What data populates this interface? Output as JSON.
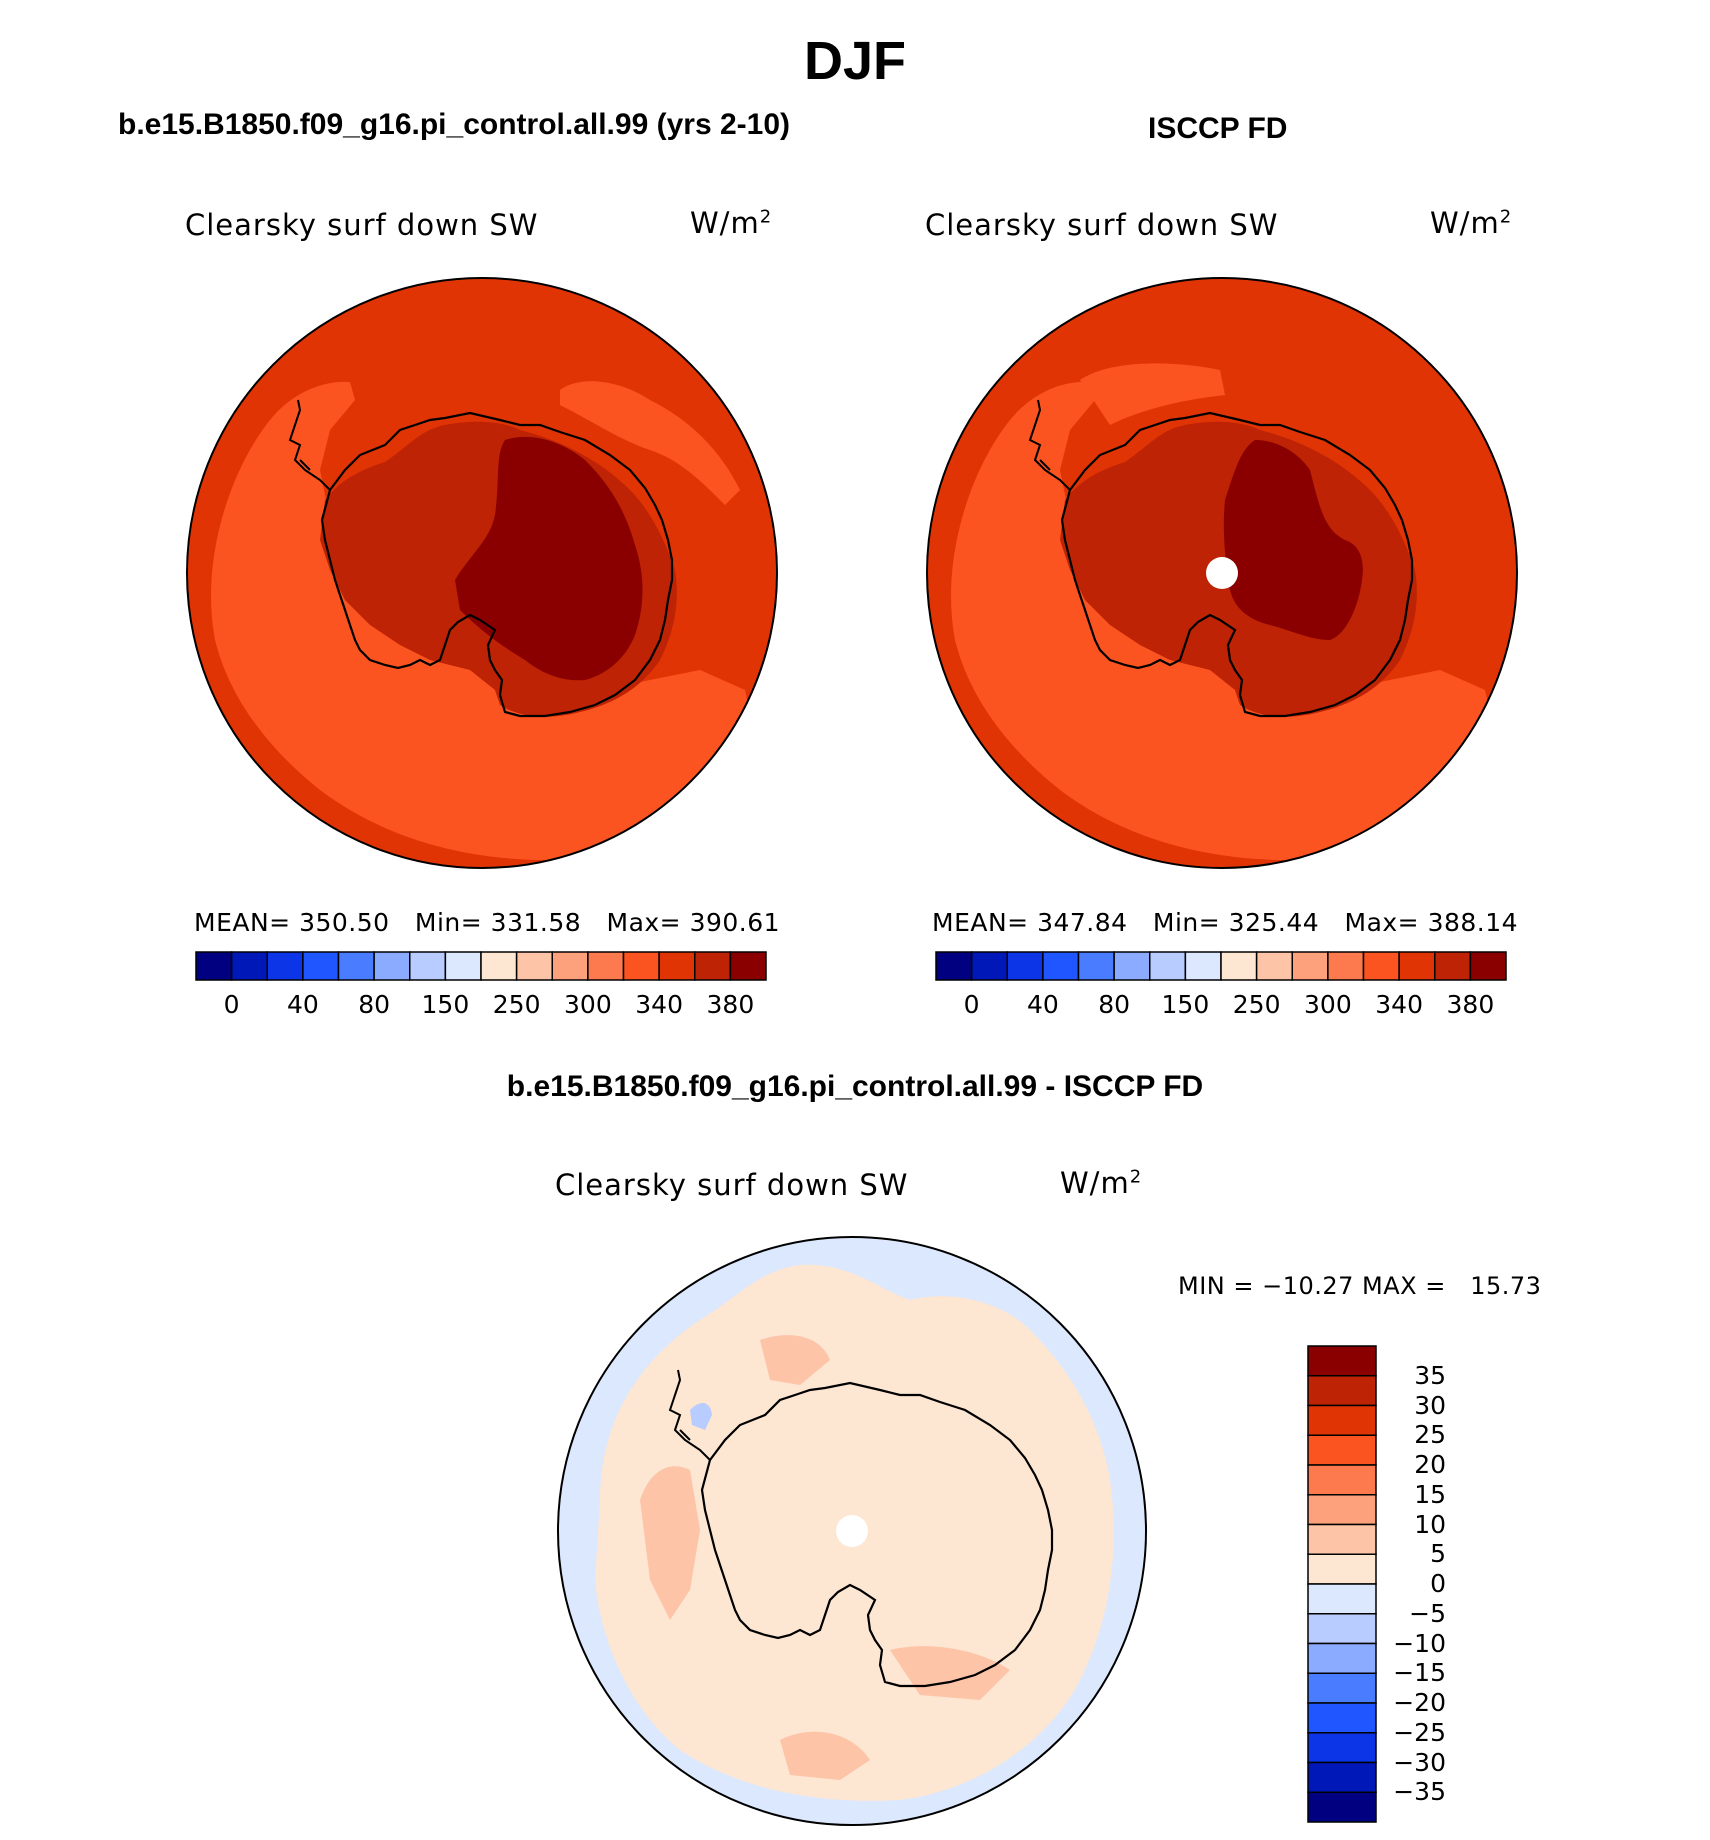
{
  "figure": {
    "title": "DJF"
  },
  "panels": [
    {
      "title": "b.e15.B1850.f09_g16.pi_control.all.99 (yrs 2-10)",
      "var_label": "Clearsky surf down SW",
      "units": "W/m",
      "units_exp": "2",
      "stats": {
        "mean_label": "MEAN=",
        "mean": "350.50",
        "min_label": "Min=",
        "min": "331.58",
        "max_label": "Max=",
        "max": "390.61"
      }
    },
    {
      "title": "ISCCP FD",
      "var_label": "Clearsky surf down SW",
      "units": "W/m",
      "units_exp": "2",
      "stats": {
        "mean_label": "MEAN=",
        "mean": "347.84",
        "min_label": "Min=",
        "min": "325.44",
        "max_label": "Max=",
        "max": "388.14"
      }
    },
    {
      "title": "b.e15.B1850.f09_g16.pi_control.all.99 - ISCCP FD",
      "var_label": "Clearsky surf down SW",
      "units": "W/m",
      "units_exp": "2",
      "minmax": "MIN = −10.27 MAX =   15.73"
    }
  ],
  "chart_data": [
    {
      "type": "heatmap",
      "title": "b.e15.B1850.f09_g16.pi_control.all.99 (yrs 2-10)",
      "projection": "south polar stereographic",
      "variable": "Clearsky surf down SW",
      "units": "W/m2",
      "mean": 350.5,
      "min": 331.58,
      "max": 390.61,
      "colorbar": {
        "orientation": "horizontal",
        "tick_labels": [
          "0",
          "40",
          "80",
          "150",
          "250",
          "300",
          "340",
          "380"
        ],
        "colors": [
          "#000080",
          "#0018b8",
          "#0b35e6",
          "#1f56ff",
          "#4a7cff",
          "#8aabff",
          "#b8ccff",
          "#dce8fd",
          "#fde6d2",
          "#fdc4a8",
          "#fda07c",
          "#fd7a4e",
          "#fb5421",
          "#e13405",
          "#bd2304",
          "#8a0000"
        ]
      }
    },
    {
      "type": "heatmap",
      "title": "ISCCP FD",
      "projection": "south polar stereographic",
      "variable": "Clearsky surf down SW",
      "units": "W/m2",
      "mean": 347.84,
      "min": 325.44,
      "max": 388.14,
      "colorbar": {
        "orientation": "horizontal",
        "tick_labels": [
          "0",
          "40",
          "80",
          "150",
          "250",
          "300",
          "340",
          "380"
        ],
        "colors": [
          "#000080",
          "#0018b8",
          "#0b35e6",
          "#1f56ff",
          "#4a7cff",
          "#8aabff",
          "#b8ccff",
          "#dce8fd",
          "#fde6d2",
          "#fdc4a8",
          "#fda07c",
          "#fd7a4e",
          "#fb5421",
          "#e13405",
          "#bd2304",
          "#8a0000"
        ]
      }
    },
    {
      "type": "heatmap",
      "title": "b.e15.B1850.f09_g16.pi_control.all.99 - ISCCP FD",
      "projection": "south polar stereographic",
      "variable": "Clearsky surf down SW",
      "units": "W/m2",
      "min": -10.27,
      "max": 15.73,
      "colorbar": {
        "orientation": "vertical",
        "tick_labels": [
          "35",
          "30",
          "25",
          "20",
          "15",
          "10",
          "5",
          "0",
          "−5",
          "−10",
          "−15",
          "−20",
          "−25",
          "−30",
          "−35"
        ],
        "colors": [
          "#8a0000",
          "#bd2304",
          "#e13405",
          "#fb5421",
          "#fd7a4e",
          "#fda07c",
          "#fdc4a8",
          "#fde6d2",
          "#dce8fd",
          "#b8ccff",
          "#8aabff",
          "#4a7cff",
          "#1f56ff",
          "#0b35e6",
          "#0018b8",
          "#000080"
        ]
      }
    }
  ]
}
